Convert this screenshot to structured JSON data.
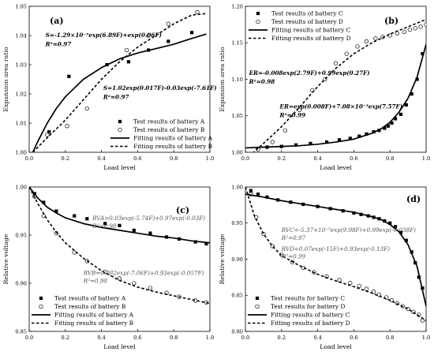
{
  "chart_data": [
    {
      "type": "scatter",
      "panel": "(a)",
      "xlabel": "Load level",
      "ylabel": "Expansion area ratio",
      "xlim": [
        0,
        1.0
      ],
      "ylim": [
        1.0,
        1.05
      ],
      "xticks": [
        0,
        0.2,
        0.4,
        0.6,
        0.8,
        1.0
      ],
      "xtick_labels": [
        "0.0",
        "0.2",
        "0.4",
        "0.6",
        "0.8",
        "1.0"
      ],
      "yticks": [
        1.0,
        1.01,
        1.02,
        1.03,
        1.04,
        1.05
      ],
      "ytick_labels": [
        "1.00",
        "1.01",
        "1.02",
        "1.03",
        "1.04",
        "1.05"
      ],
      "legend_position": "bottom-right",
      "series": [
        {
          "name": "Test results of battery A",
          "kind": "points",
          "marker": "square",
          "x": [
            0.11,
            0.22,
            0.43,
            0.55,
            0.66,
            0.77,
            0.9
          ],
          "y": [
            1.007,
            1.026,
            1.03,
            1.031,
            1.035,
            1.038,
            1.041
          ]
        },
        {
          "name": "Test results of battery B",
          "kind": "points",
          "marker": "circle",
          "x": [
            0.1,
            0.21,
            0.32,
            0.54,
            0.66,
            0.77,
            0.93
          ],
          "y": [
            1.006,
            1.009,
            1.015,
            1.035,
            1.04,
            1.044,
            1.048
          ]
        },
        {
          "name": "Fitting results of battery A",
          "kind": "line",
          "dash": "solid",
          "x": [
            0.02,
            0.05,
            0.1,
            0.15,
            0.2,
            0.3,
            0.4,
            0.5,
            0.6,
            0.7,
            0.8,
            0.9,
            0.98
          ],
          "y": [
            1.0,
            1.004,
            1.01,
            1.015,
            1.019,
            1.025,
            1.029,
            1.032,
            1.034,
            1.0355,
            1.037,
            1.039,
            1.0405
          ]
        },
        {
          "name": "Fitting results of battery B",
          "kind": "line",
          "dash": "dashed",
          "x": [
            0.02,
            0.1,
            0.2,
            0.3,
            0.4,
            0.5,
            0.6,
            0.7,
            0.8,
            0.9,
            0.98
          ],
          "y": [
            1.0,
            1.005,
            1.011,
            1.018,
            1.025,
            1.031,
            1.036,
            1.04,
            1.044,
            1.047,
            1.0475
          ]
        }
      ],
      "annotations": [
        {
          "text": "S=-1.29×10⁻⁵exp(6.89F)+exp(0.06F)",
          "x": 0.09,
          "y": 1.0395
        },
        {
          "text": "R²=0.97",
          "x": 0.09,
          "y": 1.0363
        },
        {
          "text": "S=1.02exp(0.017F)-0.03exp(-7.61F)",
          "x": 0.41,
          "y": 1.0214
        },
        {
          "text": "R²=0.97",
          "x": 0.41,
          "y": 1.0182
        }
      ]
    },
    {
      "type": "scatter",
      "panel": "(b)",
      "xlabel": "Load level",
      "ylabel": "Expansion area ratio",
      "xlim": [
        0,
        1.0
      ],
      "ylim": [
        1.0,
        1.2
      ],
      "xticks": [
        0,
        0.2,
        0.4,
        0.6,
        0.8,
        1.0
      ],
      "xtick_labels": [
        "0.0",
        "0.2",
        "0.4",
        "0.6",
        "0.8",
        "1.0"
      ],
      "yticks": [
        1.0,
        1.05,
        1.1,
        1.15,
        1.2
      ],
      "ytick_labels": [
        "1.00",
        "1.05",
        "1.10",
        "1.15",
        "1.20"
      ],
      "legend_position": "top-left",
      "series": [
        {
          "name": "Test results of battery C",
          "kind": "points",
          "marker": "square",
          "x": [
            0.07,
            0.12,
            0.2,
            0.28,
            0.36,
            0.45,
            0.52,
            0.58,
            0.63,
            0.67,
            0.71,
            0.74,
            0.77,
            0.79,
            0.81,
            0.83,
            0.86,
            0.89,
            0.92,
            0.95,
            0.98
          ],
          "y": [
            1.005,
            1.007,
            1.008,
            1.01,
            1.012,
            1.014,
            1.017,
            1.019,
            1.022,
            1.025,
            1.028,
            1.03,
            1.033,
            1.036,
            1.04,
            1.046,
            1.052,
            1.065,
            1.08,
            1.1,
            1.135
          ]
        },
        {
          "name": "Test results of battery D",
          "kind": "points",
          "marker": "circle",
          "x": [
            0.07,
            0.15,
            0.22,
            0.3,
            0.37,
            0.44,
            0.5,
            0.56,
            0.62,
            0.67,
            0.72,
            0.76,
            0.8,
            0.84,
            0.88,
            0.91,
            0.94,
            0.97,
            1.0
          ],
          "y": [
            1.004,
            1.014,
            1.03,
            1.058,
            1.085,
            1.1,
            1.122,
            1.135,
            1.145,
            1.152,
            1.156,
            1.158,
            1.16,
            1.163,
            1.165,
            1.168,
            1.17,
            1.172,
            1.175
          ]
        },
        {
          "name": "Fitting results of battery C",
          "kind": "line",
          "dash": "solid",
          "x": [
            0.0,
            0.1,
            0.2,
            0.3,
            0.4,
            0.5,
            0.6,
            0.7,
            0.75,
            0.8,
            0.85,
            0.9,
            0.95,
            1.0
          ],
          "y": [
            1.006,
            1.007,
            1.008,
            1.009,
            1.011,
            1.014,
            1.018,
            1.026,
            1.032,
            1.041,
            1.055,
            1.074,
            1.103,
            1.148
          ]
        },
        {
          "name": "Fitting results of battery D",
          "kind": "line",
          "dash": "dashed",
          "x": [
            0.0,
            0.1,
            0.2,
            0.3,
            0.4,
            0.5,
            0.6,
            0.7,
            0.8,
            0.9,
            1.0
          ],
          "y": [
            0.99,
            1.012,
            1.035,
            1.062,
            1.09,
            1.115,
            1.135,
            1.15,
            1.162,
            1.172,
            1.182
          ]
        }
      ],
      "annotations": [
        {
          "text": "ER=-0.008exp(2.79F)+0.99exp(0.27F)",
          "x": 0.02,
          "y": 1.106
        },
        {
          "text": "R²=0.98",
          "x": 0.02,
          "y": 1.094
        },
        {
          "text": "ER=exp(0.008F)+7.08×10⁻⁵exp(7.57F)",
          "x": 0.19,
          "y": 1.06
        },
        {
          "text": "R²=0.99",
          "x": 0.19,
          "y": 1.048
        }
      ]
    },
    {
      "type": "scatter",
      "panel": "(c)",
      "xlabel": "Load level",
      "ylabel": "Relative voltage",
      "xlim": [
        0,
        1.0
      ],
      "ylim": [
        0.85,
        1.0
      ],
      "xticks": [
        0,
        0.2,
        0.4,
        0.6,
        0.8,
        1.0
      ],
      "xtick_labels": [
        "0.0",
        "0.2",
        "0.4",
        "0.6",
        "0.8",
        "1.0"
      ],
      "yticks": [
        0.85,
        0.9,
        0.95,
        1.0
      ],
      "ytick_labels": [
        "0.85",
        "0.90",
        "0.95",
        "1.00"
      ],
      "legend_position": "bottom-left",
      "series": [
        {
          "name": "Test results of battery A",
          "kind": "points",
          "marker": "square",
          "x": [
            0.03,
            0.08,
            0.15,
            0.25,
            0.32,
            0.42,
            0.5,
            0.58,
            0.67,
            0.76,
            0.83,
            0.92,
            0.98
          ],
          "y": [
            0.993,
            0.984,
            0.975,
            0.97,
            0.967,
            0.962,
            0.96,
            0.955,
            0.952,
            0.948,
            0.946,
            0.943,
            0.941
          ]
        },
        {
          "name": "Test results of battery B",
          "kind": "points",
          "marker": "circle",
          "x": [
            0.03,
            0.08,
            0.15,
            0.25,
            0.32,
            0.42,
            0.5,
            0.58,
            0.67,
            0.76,
            0.83,
            0.92,
            0.98
          ],
          "y": [
            0.99,
            0.97,
            0.952,
            0.932,
            0.923,
            0.912,
            0.905,
            0.9,
            0.895,
            0.89,
            0.886,
            0.882,
            0.88
          ]
        },
        {
          "name": "Fitting results of battery A",
          "kind": "line",
          "dash": "solid",
          "x": [
            0.0,
            0.05,
            0.1,
            0.15,
            0.2,
            0.3,
            0.4,
            0.5,
            0.6,
            0.7,
            0.8,
            0.9,
            1.0
          ],
          "y": [
            1.0,
            0.988,
            0.979,
            0.973,
            0.968,
            0.962,
            0.958,
            0.955,
            0.952,
            0.949,
            0.947,
            0.944,
            0.942
          ]
        },
        {
          "name": "Fitting results of battery B",
          "kind": "line",
          "dash": "dashed",
          "x": [
            0.0,
            0.05,
            0.1,
            0.15,
            0.2,
            0.3,
            0.4,
            0.5,
            0.6,
            0.7,
            0.8,
            0.9,
            1.0
          ],
          "y": [
            1.0,
            0.982,
            0.966,
            0.953,
            0.942,
            0.926,
            0.913,
            0.903,
            0.896,
            0.891,
            0.887,
            0.883,
            0.879
          ]
        }
      ],
      "annotations": [
        {
          "text": "RVA=0.03exp(-5.74F)+0.97exp(-0.03F)",
          "x": 0.35,
          "y": 0.9655
        },
        {
          "text": "R²=0.98",
          "x": 0.35,
          "y": 0.9575
        },
        {
          "text": "RVB=0.082exp(-7.06F)+0.93exp(-0.057F)",
          "x": 0.3,
          "y": 0.9085
        },
        {
          "text": "R²=0.98",
          "x": 0.3,
          "y": 0.9005
        }
      ]
    },
    {
      "type": "scatter",
      "panel": "(d)",
      "xlabel": "Load level",
      "ylabel": "Relative voltage",
      "xlim": [
        0,
        1.0
      ],
      "ylim": [
        0.8,
        1.0
      ],
      "xticks": [
        0,
        0.2,
        0.4,
        0.6,
        0.8,
        1.0
      ],
      "xtick_labels": [
        "0.0",
        "0.2",
        "0.4",
        "0.6",
        "0.8",
        "1.0"
      ],
      "yticks": [
        0.8,
        0.85,
        0.9,
        0.95,
        1.0
      ],
      "ytick_labels": [
        "0.80",
        "0.85",
        "0.90",
        "0.95",
        "1.00"
      ],
      "legend_position": "bottom-left",
      "series": [
        {
          "name": "Test results for battery C",
          "kind": "points",
          "marker": "square",
          "x": [
            0.03,
            0.07,
            0.12,
            0.18,
            0.25,
            0.32,
            0.4,
            0.47,
            0.54,
            0.6,
            0.64,
            0.68,
            0.71,
            0.74,
            0.77,
            0.8,
            0.83,
            0.86,
            0.89,
            0.92,
            0.94,
            0.96,
            0.98
          ],
          "y": [
            0.995,
            0.99,
            0.986,
            0.982,
            0.979,
            0.976,
            0.973,
            0.97,
            0.967,
            0.964,
            0.962,
            0.96,
            0.958,
            0.956,
            0.953,
            0.95,
            0.945,
            0.937,
            0.926,
            0.91,
            0.895,
            0.875,
            0.86
          ]
        },
        {
          "name": "Test results for battery D",
          "kind": "points",
          "marker": "circle",
          "x": [
            0.03,
            0.06,
            0.1,
            0.15,
            0.2,
            0.26,
            0.32,
            0.38,
            0.45,
            0.52,
            0.58,
            0.63,
            0.67,
            0.71,
            0.74,
            0.78,
            0.81,
            0.84,
            0.87,
            0.9,
            0.93,
            0.96,
            0.98
          ],
          "y": [
            0.99,
            0.958,
            0.935,
            0.918,
            0.906,
            0.896,
            0.888,
            0.882,
            0.876,
            0.871,
            0.867,
            0.863,
            0.859,
            0.855,
            0.851,
            0.847,
            0.843,
            0.839,
            0.835,
            0.831,
            0.827,
            0.823,
            0.815
          ]
        },
        {
          "name": "Fitting results of battery C",
          "kind": "line",
          "dash": "solid",
          "x": [
            0.0,
            0.1,
            0.2,
            0.3,
            0.4,
            0.5,
            0.6,
            0.7,
            0.75,
            0.8,
            0.85,
            0.9,
            0.95,
            1.0
          ],
          "y": [
            0.99,
            0.986,
            0.981,
            0.977,
            0.973,
            0.969,
            0.965,
            0.959,
            0.955,
            0.948,
            0.938,
            0.92,
            0.89,
            0.835
          ]
        },
        {
          "name": "Fitting results of battery D",
          "kind": "line",
          "dash": "dashed",
          "x": [
            0.0,
            0.05,
            0.1,
            0.15,
            0.2,
            0.3,
            0.4,
            0.5,
            0.6,
            0.7,
            0.8,
            0.9,
            1.0
          ],
          "y": [
            1.0,
            0.96,
            0.935,
            0.918,
            0.905,
            0.891,
            0.879,
            0.87,
            0.862,
            0.853,
            0.843,
            0.831,
            0.815
          ]
        }
      ],
      "annotations": [
        {
          "text": "RVC=-5.37×10⁻⁵exp(9.98F)+0.99exp(-0.038F)",
          "x": 0.2,
          "y": 0.9375
        },
        {
          "text": "R²=0.97",
          "x": 0.2,
          "y": 0.927
        },
        {
          "text": "RVD=0.07exp(-15F)+0.93exp(-0.13F)",
          "x": 0.2,
          "y": 0.9115
        },
        {
          "text": "R²=0.99",
          "x": 0.2,
          "y": 0.901
        }
      ]
    }
  ]
}
